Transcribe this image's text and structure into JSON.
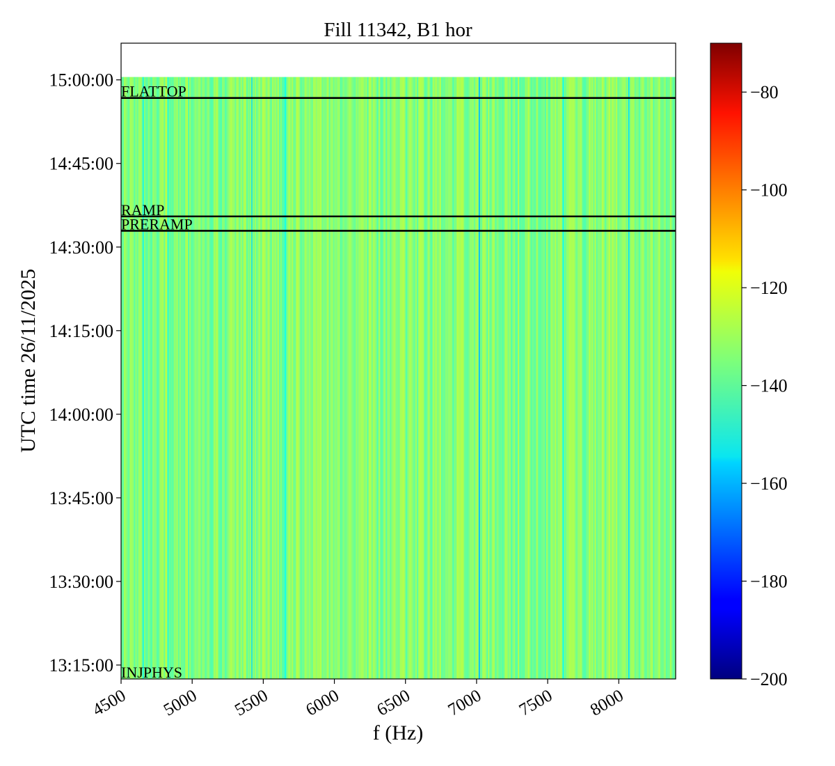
{
  "chart_data": {
    "type": "heatmap",
    "title": "Fill 11342, B1 hor",
    "xlabel": "f (Hz)",
    "ylabel": "UTC time 26/11/2025",
    "x_range": [
      4500,
      8400
    ],
    "y_range": [
      "13:12:30",
      "15:06:35"
    ],
    "data_extent": {
      "time_start": "13:12:30",
      "time_end": "15:00:30",
      "f_start": 4500,
      "f_end": 8400
    },
    "x_ticks": [
      4500,
      5000,
      5500,
      6000,
      6500,
      7000,
      7500,
      8000
    ],
    "x_tick_labels": [
      "4500",
      "5000",
      "5500",
      "6000",
      "6500",
      "7000",
      "7500",
      "8000"
    ],
    "y_ticks": [
      "13:15:00",
      "13:30:00",
      "13:45:00",
      "14:00:00",
      "14:15:00",
      "14:30:00",
      "14:45:00",
      "15:00:00"
    ],
    "y_tick_labels": [
      "13:15:00",
      "13:30:00",
      "13:45:00",
      "14:00:00",
      "14:15:00",
      "14:30:00",
      "14:45:00",
      "15:00:00"
    ],
    "colormap": "jet",
    "colorbar": {
      "range": [
        -200,
        -70
      ],
      "ticks": [
        -80,
        -100,
        -120,
        -140,
        -160,
        -180,
        -200
      ],
      "tick_labels": [
        "−80",
        "−100",
        "−120",
        "−140",
        "−160",
        "−180",
        "−200"
      ]
    },
    "typical_level": -137,
    "level_range": [
      -148,
      -128
    ],
    "notable_low_columns": [
      {
        "f": 4655,
        "value": -152
      },
      {
        "f": 4830,
        "value": -150
      },
      {
        "f": 5420,
        "value": -155
      },
      {
        "f": 5655,
        "value": -150
      },
      {
        "f": 7020,
        "value": -160
      },
      {
        "f": 7610,
        "value": -150
      },
      {
        "f": 8070,
        "value": -155
      }
    ],
    "markers": [
      {
        "label": "FLATTOP",
        "time": "14:56:45"
      },
      {
        "label": "RAMP",
        "time": "14:35:30"
      },
      {
        "label": "PRERAMP",
        "time": "14:32:55"
      },
      {
        "label": "INJPHYS",
        "time": "13:12:30"
      }
    ],
    "grid": false,
    "legend": "none"
  }
}
